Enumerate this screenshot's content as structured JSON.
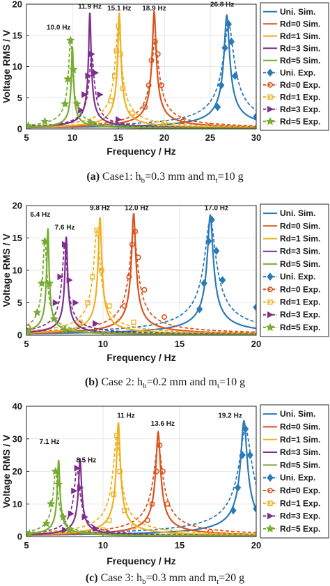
{
  "palette": {
    "uni": "#2a7ab8",
    "rd0": "#d9541e",
    "rd1": "#edb120",
    "rd3": "#7e2f8e",
    "rd5": "#77ac30"
  },
  "legend_entries": [
    "Uni. Sim.",
    "Rd=0 Sim.",
    "Rd=1 Sim.",
    "Rd=3 Sim.",
    "Rd=5 Sim.",
    "Uni. Exp.",
    "Rd=0 Exp.",
    "Rd=1 Exp.",
    "Rd=3 Exp.",
    "Rd=5 Exp."
  ],
  "legend_markers": [
    "none",
    "none",
    "none",
    "none",
    "none",
    "diamond",
    "circle",
    "square",
    "triangle-right",
    "star"
  ],
  "chart_data": [
    {
      "type": "line",
      "xlabel": "Frequency / Hz",
      "ylabel": "Voltage RMS / V",
      "xlim": [
        5,
        30
      ],
      "ylim": [
        0,
        20
      ],
      "xticks": [
        5,
        10,
        15,
        20,
        25,
        30
      ],
      "yticks": [
        0,
        5,
        10,
        15,
        20
      ],
      "grid": true,
      "legend": "right",
      "caption": {
        "label": "(a)",
        "text": " Case1: h",
        "sub1": "b",
        "mid": "=0.3 mm and m",
        "sub2": "t",
        "end": "=10 g"
      },
      "series": [
        {
          "name": "Uni.",
          "peak_freq": 26.8,
          "peak_volt": 18.2,
          "exp_peak_freq": 27.0,
          "exp_peak_volt": 16.8,
          "exp_x": [
            25.8,
            26.2,
            26.6,
            27.0,
            27.3,
            27.7,
            30.0
          ],
          "exp_y": [
            3.5,
            7.0,
            13.0,
            16.8,
            14.0,
            8.5,
            2.0
          ]
        },
        {
          "name": "Rd=0",
          "peak_freq": 18.9,
          "peak_volt": 18.8,
          "exp_peak_freq": 19.0,
          "exp_peak_volt": 14.0,
          "exp_x": [
            17.9,
            18.3,
            18.6,
            19.0,
            19.3,
            19.7,
            22.0,
            25.0
          ],
          "exp_y": [
            3.5,
            7.0,
            11.0,
            14.0,
            12.0,
            7.0,
            1.2,
            0.5
          ]
        },
        {
          "name": "Rd=1",
          "peak_freq": 15.1,
          "peak_volt": 18.5,
          "exp_peak_freq": 15.0,
          "exp_peak_volt": 16.5,
          "exp_x": [
            14.2,
            14.6,
            14.8,
            15.0,
            15.2,
            15.5,
            16.5,
            20.0
          ],
          "exp_y": [
            4.5,
            8.5,
            12.5,
            16.5,
            12.0,
            6.5,
            2.5,
            1.0
          ]
        },
        {
          "name": "Rd=3",
          "peak_freq": 11.9,
          "peak_volt": 18.7,
          "exp_peak_freq": 12.1,
          "exp_peak_volt": 12.0,
          "exp_x": [
            10.9,
            11.3,
            11.7,
            12.1,
            12.5,
            13.0,
            15.0
          ],
          "exp_y": [
            3.0,
            5.5,
            8.5,
            12.0,
            9.0,
            5.5,
            1.5
          ]
        },
        {
          "name": "Rd=5",
          "peak_freq": 10.0,
          "peak_volt": 13.2,
          "exp_peak_freq": 9.8,
          "exp_peak_volt": 14.2,
          "exp_x": [
            5.2,
            7.0,
            9.2,
            9.5,
            9.8,
            10.1,
            10.5,
            12.0
          ],
          "exp_y": [
            0.5,
            1.2,
            4.0,
            8.0,
            14.2,
            9.5,
            4.0,
            1.0
          ]
        }
      ],
      "annotations": [
        {
          "text": "10.0 Hz",
          "x": 8.5,
          "y": 15.9
        },
        {
          "text": "11.9 Hz",
          "x": 11.9,
          "y": 19.3
        },
        {
          "text": "15.1 Hz",
          "x": 15.1,
          "y": 19.0
        },
        {
          "text": "18.9 Hz",
          "x": 18.9,
          "y": 19.0
        },
        {
          "text": "26.8 Hz",
          "x": 26.3,
          "y": 19.6
        }
      ]
    },
    {
      "type": "line",
      "xlabel": "Frequency / Hz",
      "ylabel": "Voltage RMS / V",
      "xlim": [
        5,
        20
      ],
      "ylim": [
        0,
        20
      ],
      "xticks": [
        5,
        10,
        15,
        20
      ],
      "yticks": [
        0,
        5,
        10,
        15,
        20
      ],
      "grid": true,
      "legend": "right",
      "caption": {
        "label": "(b)",
        "text": " Case 2: h",
        "sub1": "b",
        "mid": "=0.2 mm and m",
        "sub2": "t",
        "end": "=10 g"
      },
      "series": [
        {
          "name": "Uni.",
          "peak_freq": 17.0,
          "peak_volt": 18.5,
          "exp_peak_freq": 17.0,
          "exp_peak_volt": 17.8,
          "exp_x": [
            16.3,
            16.6,
            16.9,
            17.1,
            17.4,
            17.8,
            20.0
          ],
          "exp_y": [
            4.0,
            8.0,
            14.5,
            17.8,
            13.0,
            8.5,
            4.3
          ]
        },
        {
          "name": "Rd=0",
          "peak_freq": 12.0,
          "peak_volt": 18.8,
          "exp_peak_freq": 12.0,
          "exp_peak_volt": 16.0,
          "exp_x": [
            5.1,
            11.4,
            11.7,
            11.9,
            12.1,
            12.3,
            12.7,
            14.0
          ],
          "exp_y": [
            1.2,
            4.5,
            9.0,
            14.0,
            16.0,
            12.0,
            7.0,
            2.8
          ]
        },
        {
          "name": "Rd=1",
          "peak_freq": 9.8,
          "peak_volt": 18.2,
          "exp_peak_freq": 9.6,
          "exp_peak_volt": 16.2,
          "exp_x": [
            8.5,
            9.0,
            9.3,
            9.6,
            9.9,
            10.4,
            12.0
          ],
          "exp_y": [
            2.0,
            5.0,
            9.0,
            16.2,
            10.0,
            4.5,
            2.0
          ]
        },
        {
          "name": "Rd=3",
          "peak_freq": 7.6,
          "peak_volt": 15.2,
          "exp_peak_freq": 7.5,
          "exp_peak_volt": 14.0,
          "exp_x": [
            5.1,
            6.9,
            7.2,
            7.5,
            7.8,
            8.2,
            9.5
          ],
          "exp_y": [
            0.8,
            5.0,
            9.0,
            14.0,
            8.5,
            5.0,
            1.8
          ]
        },
        {
          "name": "Rd=5",
          "peak_freq": 6.4,
          "peak_volt": 16.5,
          "exp_peak_freq": 6.2,
          "exp_peak_volt": 14.5,
          "exp_x": [
            5.1,
            5.7,
            6.0,
            6.2,
            6.5,
            6.8,
            7.5
          ],
          "exp_y": [
            0.5,
            3.5,
            8.0,
            14.5,
            8.0,
            2.5,
            0.8
          ]
        }
      ],
      "annotations": [
        {
          "text": "6.4 Hz",
          "x": 5.9,
          "y": 18.3
        },
        {
          "text": "7.6 Hz",
          "x": 7.5,
          "y": 16.3
        },
        {
          "text": "9.8 Hz",
          "x": 9.8,
          "y": 19.3
        },
        {
          "text": "12.0 Hz",
          "x": 12.2,
          "y": 19.3
        },
        {
          "text": "17.0 Hz",
          "x": 17.4,
          "y": 19.3
        }
      ]
    },
    {
      "type": "line",
      "xlabel": "Frequency / Hz",
      "ylabel": "Voltage RMS / V",
      "xlim": [
        5,
        20
      ],
      "ylim": [
        0,
        40
      ],
      "xticks": [
        5,
        10,
        15,
        20
      ],
      "yticks": [
        0,
        10,
        20,
        30,
        40
      ],
      "grid": true,
      "legend": "right",
      "caption": {
        "label": "(c)",
        "text": " Case 3: h",
        "sub1": "b",
        "mid": "=0.3 mm and m",
        "sub2": "t",
        "end": "=20 g"
      },
      "series": [
        {
          "name": "Uni.",
          "peak_freq": 19.2,
          "peak_volt": 35.5,
          "exp_peak_freq": 19.3,
          "exp_peak_volt": 33.0,
          "exp_x": [
            18.5,
            18.8,
            19.1,
            19.3,
            19.6,
            20.0
          ],
          "exp_y": [
            8.0,
            15.0,
            25.0,
            33.0,
            25.0,
            8.5
          ]
        },
        {
          "name": "Rd=0",
          "peak_freq": 13.6,
          "peak_volt": 32.0,
          "exp_peak_freq": 13.6,
          "exp_peak_volt": 28.0,
          "exp_x": [
            12.9,
            13.2,
            13.5,
            13.7,
            13.9,
            14.2,
            17.0
          ],
          "exp_y": [
            5.0,
            10.0,
            20.0,
            28.0,
            20.0,
            10.0,
            1.5
          ]
        },
        {
          "name": "Rd=1",
          "peak_freq": 11.0,
          "peak_volt": 35.0,
          "exp_peak_freq": 10.9,
          "exp_peak_volt": 31.0,
          "exp_x": [
            10.0,
            10.4,
            10.7,
            10.9,
            11.1,
            11.4,
            12.0,
            15.0
          ],
          "exp_y": [
            2.0,
            5.0,
            13.0,
            31.0,
            20.0,
            8.0,
            3.0,
            1.0
          ]
        },
        {
          "name": "Rd=3",
          "peak_freq": 8.5,
          "peak_volt": 24.0,
          "exp_peak_freq": 8.3,
          "exp_peak_volt": 21.0,
          "exp_x": [
            7.5,
            7.9,
            8.1,
            8.3,
            8.5,
            8.8,
            9.5
          ],
          "exp_y": [
            2.0,
            7.0,
            14.0,
            21.0,
            15.0,
            6.0,
            2.5
          ]
        },
        {
          "name": "Rd=5",
          "peak_freq": 7.1,
          "peak_volt": 23.5,
          "exp_peak_freq": 6.9,
          "exp_peak_volt": 20.0,
          "exp_x": [
            5.2,
            6.3,
            6.6,
            6.9,
            7.1,
            7.4,
            7.8
          ],
          "exp_y": [
            0.8,
            4.0,
            10.0,
            20.0,
            16.0,
            6.0,
            2.0
          ]
        }
      ],
      "annotations": [
        {
          "text": "7.1 Hz",
          "x": 6.5,
          "y": 28.5
        },
        {
          "text": "8.5 Hz",
          "x": 8.9,
          "y": 22.8
        },
        {
          "text": "11 Hz",
          "x": 11.5,
          "y": 36.5
        },
        {
          "text": "13.6 Hz",
          "x": 13.9,
          "y": 34.0
        },
        {
          "text": "19.2 Hz",
          "x": 18.3,
          "y": 36.5
        }
      ]
    }
  ]
}
